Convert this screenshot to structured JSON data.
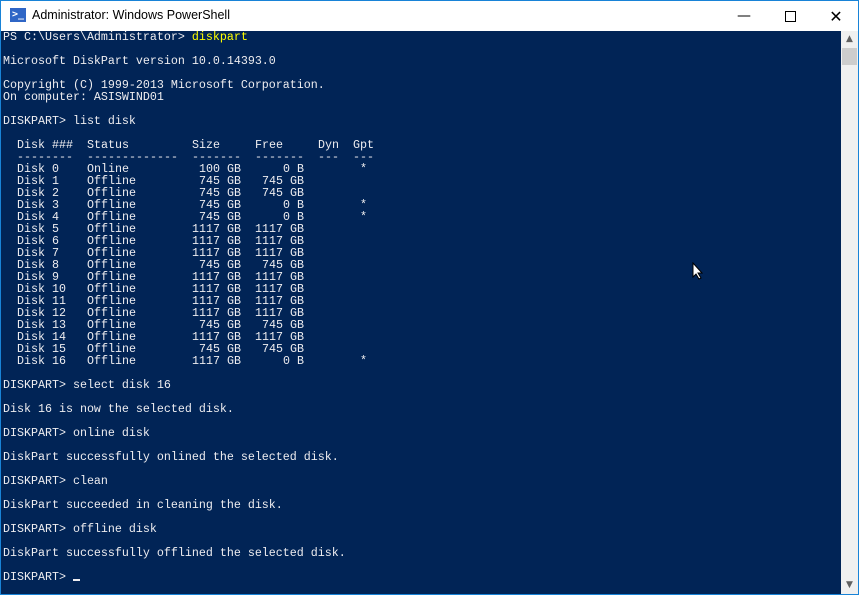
{
  "window": {
    "title": "Administrator: Windows PowerShell",
    "icon": "powershell-icon",
    "controls": [
      "minimize-icon",
      "maximize-icon",
      "close-icon"
    ]
  },
  "colors": {
    "background": "#012456",
    "text": "#eeedf0",
    "command_highlight": "#ffff00"
  },
  "console": {
    "ps_prompt": "PS C:\\Users\\Administrator> ",
    "ps_command": "diskpart",
    "version": "Microsoft DiskPart version 10.0.14393.0",
    "copyright": "Copyright (C) 1999-2013 Microsoft Corporation.",
    "computer": "On computer: ASISWIND01",
    "cmd_list": "DISKPART> list disk",
    "table": {
      "headers": [
        "Disk ###",
        "Status",
        "Size",
        "Free",
        "Dyn",
        "Gpt"
      ],
      "dashes": [
        "--------",
        "-------------",
        "-------",
        "-------",
        "---",
        "---"
      ],
      "rows": [
        [
          "Disk 0",
          "Online",
          "100 GB",
          "0 B",
          "",
          "*"
        ],
        [
          "Disk 1",
          "Offline",
          "745 GB",
          "745 GB",
          "",
          ""
        ],
        [
          "Disk 2",
          "Offline",
          "745 GB",
          "745 GB",
          "",
          ""
        ],
        [
          "Disk 3",
          "Offline",
          "745 GB",
          "0 B",
          "",
          "*"
        ],
        [
          "Disk 4",
          "Offline",
          "745 GB",
          "0 B",
          "",
          "*"
        ],
        [
          "Disk 5",
          "Offline",
          "1117 GB",
          "1117 GB",
          "",
          ""
        ],
        [
          "Disk 6",
          "Offline",
          "1117 GB",
          "1117 GB",
          "",
          ""
        ],
        [
          "Disk 7",
          "Offline",
          "1117 GB",
          "1117 GB",
          "",
          ""
        ],
        [
          "Disk 8",
          "Offline",
          "745 GB",
          "745 GB",
          "",
          ""
        ],
        [
          "Disk 9",
          "Offline",
          "1117 GB",
          "1117 GB",
          "",
          ""
        ],
        [
          "Disk 10",
          "Offline",
          "1117 GB",
          "1117 GB",
          "",
          ""
        ],
        [
          "Disk 11",
          "Offline",
          "1117 GB",
          "1117 GB",
          "",
          ""
        ],
        [
          "Disk 12",
          "Offline",
          "1117 GB",
          "1117 GB",
          "",
          ""
        ],
        [
          "Disk 13",
          "Offline",
          "745 GB",
          "745 GB",
          "",
          ""
        ],
        [
          "Disk 14",
          "Offline",
          "1117 GB",
          "1117 GB",
          "",
          ""
        ],
        [
          "Disk 15",
          "Offline",
          "745 GB",
          "745 GB",
          "",
          ""
        ],
        [
          "Disk 16",
          "Offline",
          "1117 GB",
          "0 B",
          "",
          "*"
        ]
      ]
    },
    "cmd_select": "DISKPART> select disk 16",
    "msg_select": "Disk 16 is now the selected disk.",
    "cmd_online": "DISKPART> online disk",
    "msg_online": "DiskPart successfully onlined the selected disk.",
    "cmd_clean": "DISKPART> clean",
    "msg_clean": "DiskPart succeeded in cleaning the disk.",
    "cmd_offline": "DISKPART> offline disk",
    "msg_offline": "DiskPart successfully offlined the selected disk.",
    "final_prompt": "DISKPART> "
  }
}
